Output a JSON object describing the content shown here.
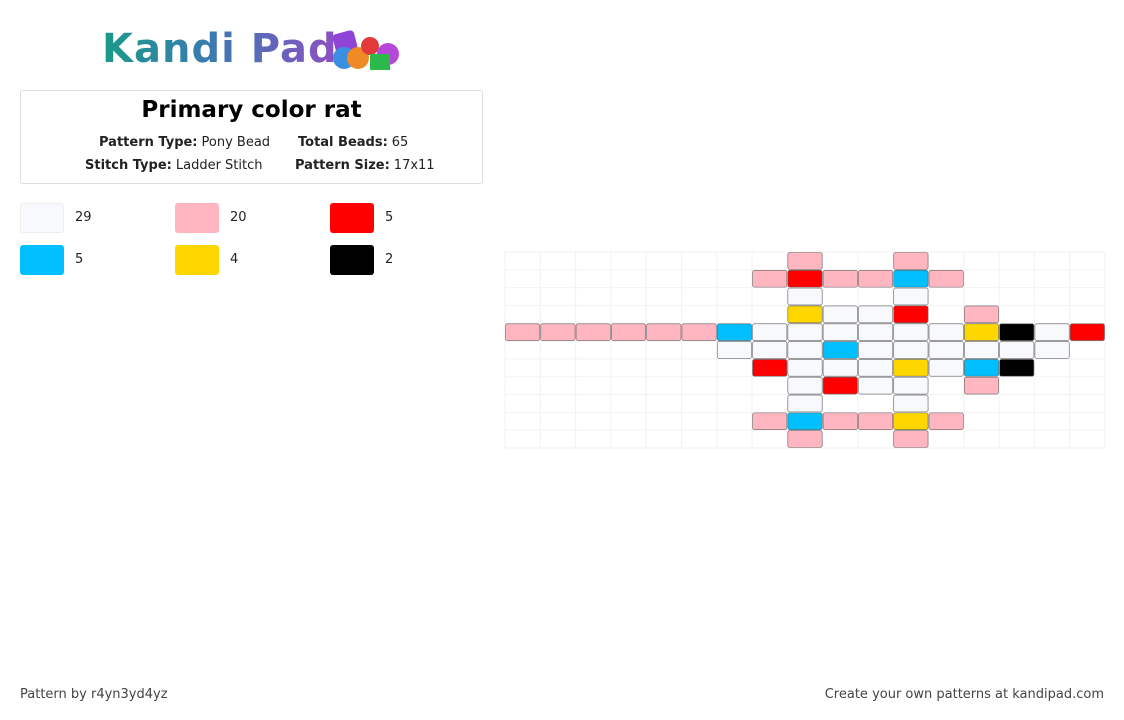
{
  "logo": "Kandi Pad",
  "header": {
    "title": "Primary color rat",
    "fields": [
      {
        "label": "Pattern Type:",
        "value": "Pony Bead"
      },
      {
        "label": "Total Beads:",
        "value": 65
      },
      {
        "label": "Stitch Type:",
        "value": "Ladder Stitch"
      },
      {
        "label": "Pattern Size:",
        "value": "17x11"
      }
    ]
  },
  "palette": [
    {
      "color": "#f8f9fd",
      "count": 29
    },
    {
      "color": "#ffb6c1",
      "count": 20
    },
    {
      "color": "#ff0000",
      "count": 5
    },
    {
      "color": "#00bfff",
      "count": 5
    },
    {
      "color": "#ffd700",
      "count": 4
    },
    {
      "color": "#000000",
      "count": 2
    }
  ],
  "grid": [
    [
      null,
      null,
      null,
      null,
      null,
      null,
      null,
      null,
      1,
      null,
      null,
      1,
      null,
      null,
      null,
      null,
      null
    ],
    [
      null,
      null,
      null,
      null,
      null,
      null,
      null,
      1,
      2,
      1,
      1,
      3,
      1,
      null,
      null,
      null,
      null
    ],
    [
      null,
      null,
      null,
      null,
      null,
      null,
      null,
      null,
      0,
      null,
      null,
      0,
      null,
      null,
      null,
      null,
      null
    ],
    [
      null,
      null,
      null,
      null,
      null,
      null,
      null,
      null,
      4,
      0,
      0,
      2,
      null,
      1,
      null,
      null,
      null
    ],
    [
      1,
      1,
      1,
      1,
      1,
      1,
      3,
      0,
      0,
      0,
      0,
      0,
      0,
      4,
      5,
      0,
      2
    ],
    [
      null,
      null,
      null,
      null,
      null,
      null,
      0,
      0,
      0,
      3,
      0,
      0,
      0,
      0,
      0,
      0,
      null
    ],
    [
      null,
      null,
      null,
      null,
      null,
      null,
      null,
      2,
      0,
      0,
      0,
      4,
      0,
      3,
      5,
      null,
      null
    ],
    [
      null,
      null,
      null,
      null,
      null,
      null,
      null,
      null,
      0,
      2,
      0,
      0,
      null,
      1,
      null,
      null,
      null
    ],
    [
      null,
      null,
      null,
      null,
      null,
      null,
      null,
      null,
      0,
      null,
      null,
      0,
      null,
      null,
      null,
      null,
      null
    ],
    [
      null,
      null,
      null,
      null,
      null,
      null,
      null,
      1,
      3,
      1,
      1,
      4,
      1,
      null,
      null,
      null,
      null
    ],
    [
      null,
      null,
      null,
      null,
      null,
      null,
      null,
      null,
      1,
      null,
      null,
      1,
      null,
      null,
      null,
      null,
      null
    ]
  ],
  "footer": {
    "left": "Pattern by r4yn3yd4yz",
    "right": "Create your own patterns at kandipad.com"
  }
}
